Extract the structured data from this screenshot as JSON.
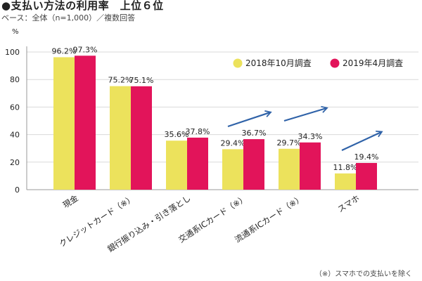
{
  "header": {
    "title": "●支払い方法の利用率　上位６位",
    "subtitle": "ベース：全体（n=1,000）／複数回答"
  },
  "footnote": "（※）スマホでの支払いを除く",
  "colors": {
    "series_2018": "#ece25c",
    "series_2019": "#e2145a",
    "arrow": "#2f62a8",
    "axis": "#999999",
    "grid": "#d9d9d9"
  },
  "chart_data": {
    "type": "bar",
    "categories": [
      "現金",
      "クレジットカード（※）",
      "銀行振り込み・引き落とし",
      "交通系ICカード（※）",
      "流通系ICカード（※）",
      "スマホ"
    ],
    "series": [
      {
        "name": "2018年10月調査",
        "values": [
          96.2,
          75.2,
          35.6,
          29.4,
          29.7,
          11.8
        ]
      },
      {
        "name": "2019年4月調査",
        "values": [
          97.3,
          75.1,
          37.8,
          36.7,
          34.3,
          19.4
        ]
      }
    ],
    "value_labels": [
      [
        "96.2%",
        "75.2%",
        "35.6%",
        "29.4%",
        "29.7%",
        "11.8%"
      ],
      [
        "97.3%",
        "75.1%",
        "37.8%",
        "36.7%",
        "34.3%",
        "19.4%"
      ]
    ],
    "ylabel": "%",
    "yticks": [
      0,
      20,
      40,
      60,
      80,
      100
    ],
    "ylim": [
      0,
      100
    ],
    "grid": true,
    "legend_position": "top-right",
    "trend_arrows_on": [
      "交通系ICカード（※）",
      "流通系ICカード（※）",
      "スマホ"
    ]
  }
}
